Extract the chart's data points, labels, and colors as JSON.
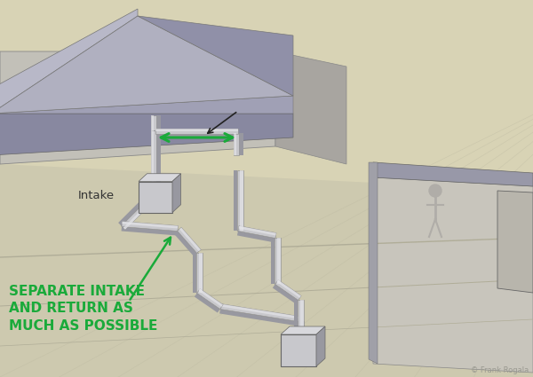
{
  "bg_color": "#d8d3b5",
  "green_color": "#1aaa3a",
  "pipe_color": "#c8c8cc",
  "pipe_highlight": "#e8e8ec",
  "pipe_shadow": "#9898a0",
  "pipe_edge": "#888888",
  "building_wall_front": "#c0bdb5",
  "building_wall_right": "#a8a5a0",
  "building_roof_face": "#9898a8",
  "building_roof_top_l": "#b8b8c8",
  "building_roof_top_r": "#a0a0b0",
  "building_overhang_bottom": "#8888a0",
  "building2_wall": "#c8c5bc",
  "building2_roof": "#9898a8",
  "ground_color": "#ccc9b0",
  "ground_line_color": "#b8b5a0",
  "label_intake": "Intake",
  "label_main": "SEPARATE INTAKE\nAND RETURN AS\nMUCH AS POSSIBLE",
  "copyright": "© Frank Rogala",
  "person_color": "#b0ada8"
}
